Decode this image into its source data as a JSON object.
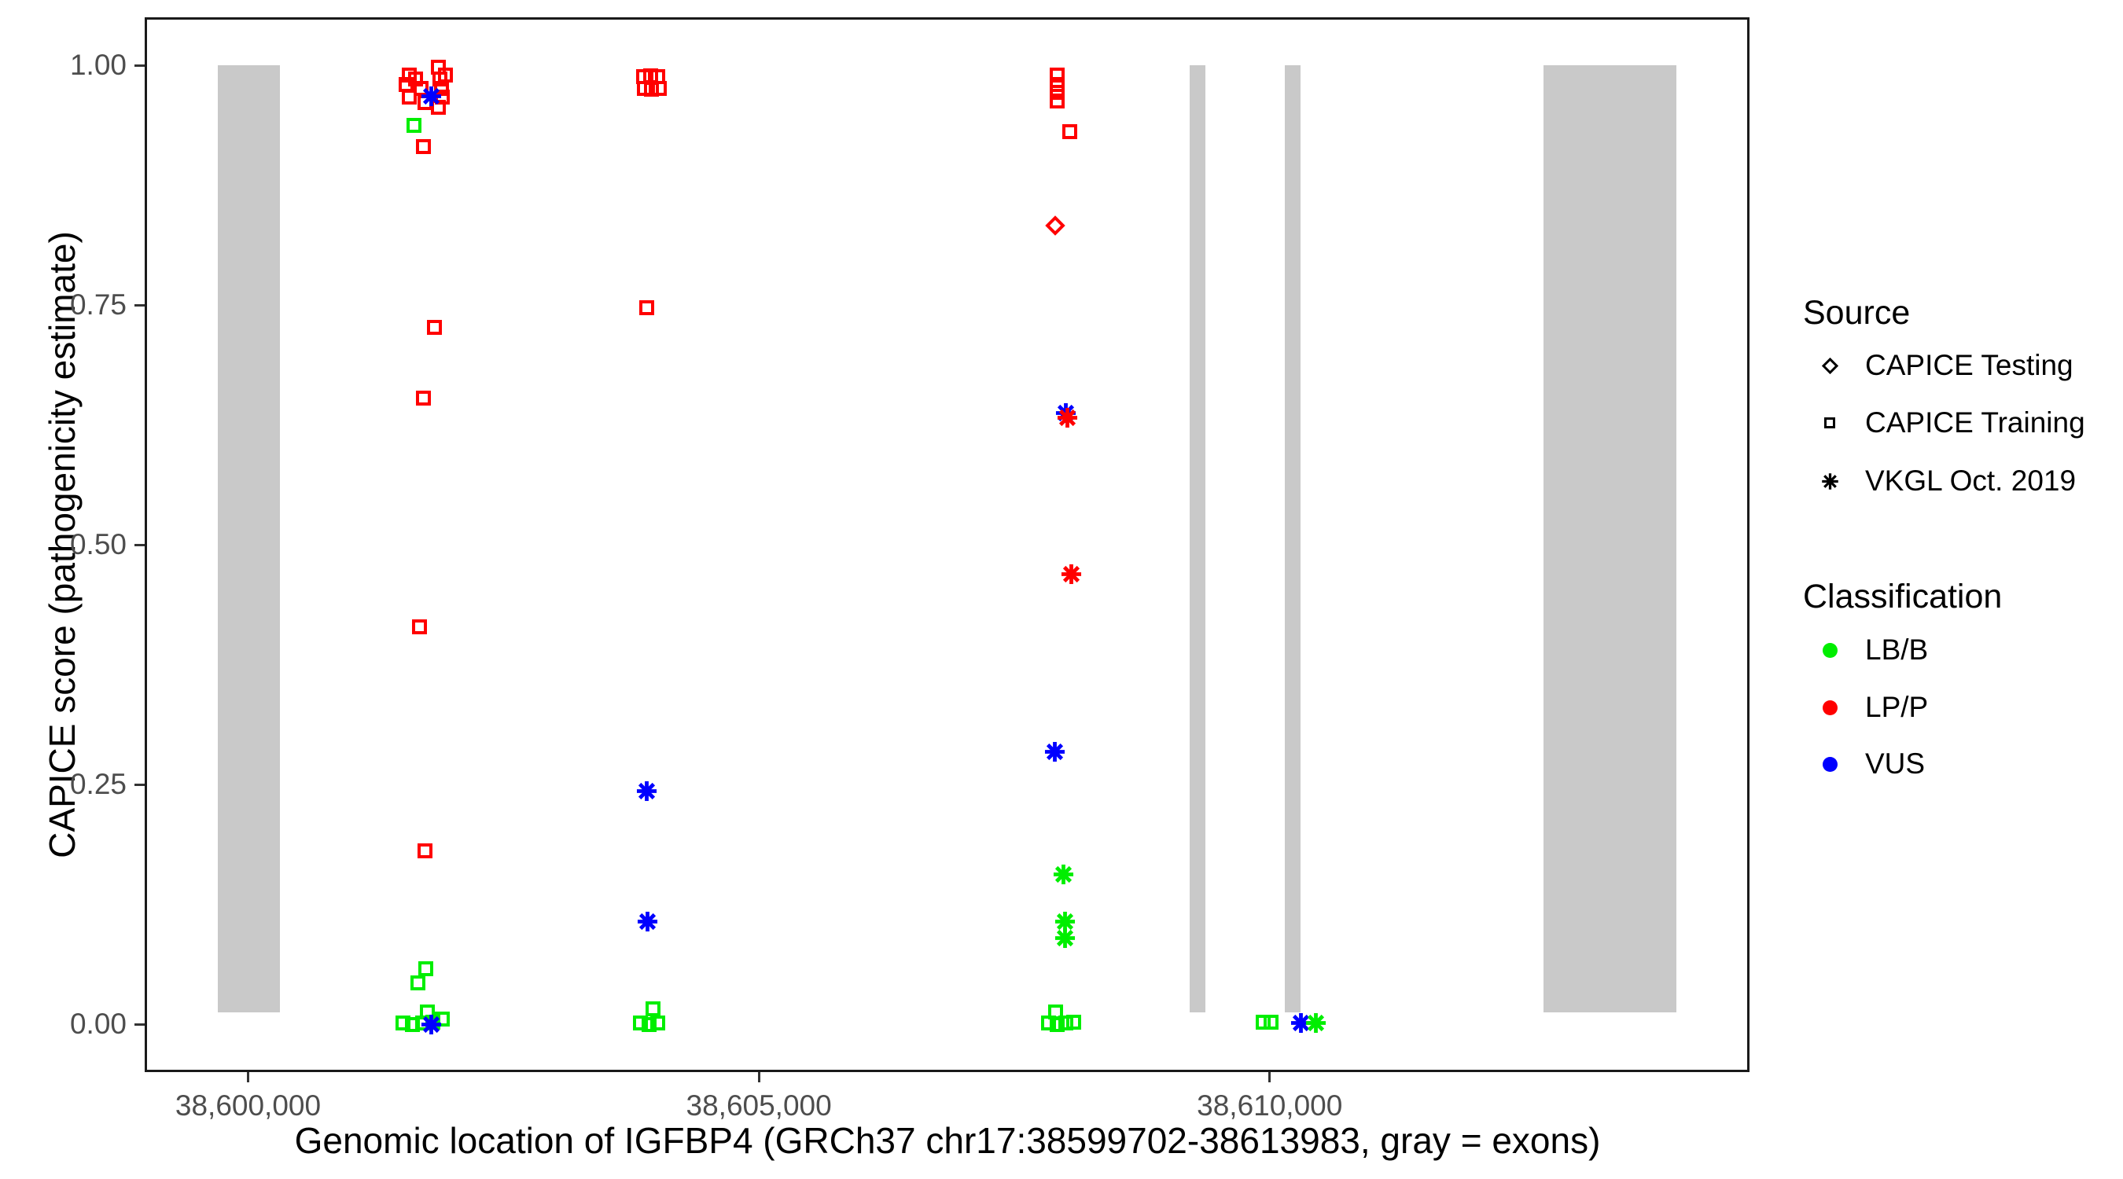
{
  "chart_data": {
    "type": "scatter",
    "xlabel": "Genomic location of IGFBP4 (GRCh37 chr17:38599702-38613983, gray = exons)",
    "ylabel": "CAPICE score (pathogenicity estimate)",
    "xlim": [
      38598988,
      38614697
    ],
    "ylim": [
      -0.05,
      1.05
    ],
    "grid": false,
    "x_ticks": [
      {
        "value": 38600000,
        "label": "38,600,000"
      },
      {
        "value": 38605000,
        "label": "38,605,000"
      },
      {
        "value": 38610000,
        "label": "38,610,000"
      }
    ],
    "y_ticks": [
      {
        "value": 0.0,
        "label": "0.00"
      },
      {
        "value": 0.25,
        "label": "0.25"
      },
      {
        "value": 0.5,
        "label": "0.50"
      },
      {
        "value": 0.75,
        "label": "0.75"
      },
      {
        "value": 1.0,
        "label": "1.00"
      }
    ],
    "exon_band": {
      "color": "#c9c9c9",
      "y_from": 0.0125,
      "y_to": 1.0
    },
    "exons": [
      [
        38599702,
        38600315
      ],
      [
        38609217,
        38609371
      ],
      [
        38610148,
        38610302
      ],
      [
        38612680,
        38613983
      ]
    ],
    "class_colors": {
      "LB/B": "#00ee00",
      "LP/P": "#ff0000",
      "VUS": "#0000ff"
    },
    "series": [
      {
        "name": "CAPICE Training",
        "marker": "square",
        "points": [
          {
            "x": 38601580,
            "y": 0.99,
            "cls": "LP/P"
          },
          {
            "x": 38601550,
            "y": 0.98,
            "cls": "LP/P"
          },
          {
            "x": 38601640,
            "y": 0.986,
            "cls": "LP/P"
          },
          {
            "x": 38601690,
            "y": 0.976,
            "cls": "LP/P"
          },
          {
            "x": 38601580,
            "y": 0.967,
            "cls": "LP/P"
          },
          {
            "x": 38601735,
            "y": 0.961,
            "cls": "LP/P"
          },
          {
            "x": 38601860,
            "y": 0.998,
            "cls": "LP/P"
          },
          {
            "x": 38601875,
            "y": 0.986,
            "cls": "LP/P"
          },
          {
            "x": 38601890,
            "y": 0.976,
            "cls": "LP/P"
          },
          {
            "x": 38601905,
            "y": 0.967,
            "cls": "LP/P"
          },
          {
            "x": 38601935,
            "y": 0.99,
            "cls": "LP/P"
          },
          {
            "x": 38601860,
            "y": 0.956,
            "cls": "LP/P"
          },
          {
            "x": 38601627,
            "y": 0.937,
            "cls": "LB/B"
          },
          {
            "x": 38601720,
            "y": 0.915,
            "cls": "LP/P"
          },
          {
            "x": 38601828,
            "y": 0.727,
            "cls": "LP/P"
          },
          {
            "x": 38601720,
            "y": 0.653,
            "cls": "LP/P"
          },
          {
            "x": 38601680,
            "y": 0.414,
            "cls": "LP/P"
          },
          {
            "x": 38601735,
            "y": 0.181,
            "cls": "LP/P"
          },
          {
            "x": 38601742,
            "y": 0.058,
            "cls": "LB/B"
          },
          {
            "x": 38601665,
            "y": 0.043,
            "cls": "LB/B"
          },
          {
            "x": 38601757,
            "y": 0.013,
            "cls": "LB/B"
          },
          {
            "x": 38601518,
            "y": 0.001,
            "cls": "LB/B"
          },
          {
            "x": 38601611,
            "y": 0.0,
            "cls": "LB/B"
          },
          {
            "x": 38601711,
            "y": 0.001,
            "cls": "LB/B"
          },
          {
            "x": 38601812,
            "y": 0.002,
            "cls": "LB/B"
          },
          {
            "x": 38601904,
            "y": 0.005,
            "cls": "LB/B"
          },
          {
            "x": 38603872,
            "y": 0.988,
            "cls": "LP/P"
          },
          {
            "x": 38603941,
            "y": 0.989,
            "cls": "LP/P"
          },
          {
            "x": 38604011,
            "y": 0.988,
            "cls": "LP/P"
          },
          {
            "x": 38603880,
            "y": 0.976,
            "cls": "LP/P"
          },
          {
            "x": 38603949,
            "y": 0.975,
            "cls": "LP/P"
          },
          {
            "x": 38604026,
            "y": 0.976,
            "cls": "LP/P"
          },
          {
            "x": 38603903,
            "y": 0.747,
            "cls": "LP/P"
          },
          {
            "x": 38603964,
            "y": 0.016,
            "cls": "LB/B"
          },
          {
            "x": 38603841,
            "y": 0.001,
            "cls": "LB/B"
          },
          {
            "x": 38603926,
            "y": 0.0,
            "cls": "LB/B"
          },
          {
            "x": 38604011,
            "y": 0.001,
            "cls": "LB/B"
          },
          {
            "x": 38607923,
            "y": 0.99,
            "cls": "LP/P"
          },
          {
            "x": 38607923,
            "y": 0.98,
            "cls": "LP/P"
          },
          {
            "x": 38607923,
            "y": 0.972,
            "cls": "LP/P"
          },
          {
            "x": 38607923,
            "y": 0.963,
            "cls": "LP/P"
          },
          {
            "x": 38608046,
            "y": 0.931,
            "cls": "LP/P"
          },
          {
            "x": 38607907,
            "y": 0.013,
            "cls": "LB/B"
          },
          {
            "x": 38607834,
            "y": 0.001,
            "cls": "LB/B"
          },
          {
            "x": 38607919,
            "y": 0.0,
            "cls": "LB/B"
          },
          {
            "x": 38608003,
            "y": 0.001,
            "cls": "LB/B"
          },
          {
            "x": 38608080,
            "y": 0.002,
            "cls": "LB/B"
          },
          {
            "x": 38609936,
            "y": 0.002,
            "cls": "LB/B"
          },
          {
            "x": 38610013,
            "y": 0.002,
            "cls": "LB/B"
          }
        ]
      },
      {
        "name": "VKGL Oct. 2019",
        "marker": "asterisk",
        "points": [
          {
            "x": 38601790,
            "y": 0.968,
            "cls": "VUS"
          },
          {
            "x": 38601797,
            "y": 0.0,
            "cls": "VUS"
          },
          {
            "x": 38603903,
            "y": 0.243,
            "cls": "VUS"
          },
          {
            "x": 38603910,
            "y": 0.107,
            "cls": "VUS"
          },
          {
            "x": 38608007,
            "y": 0.637,
            "cls": "VUS"
          },
          {
            "x": 38608023,
            "y": 0.632,
            "cls": "LP/P"
          },
          {
            "x": 38608062,
            "y": 0.469,
            "cls": "LP/P"
          },
          {
            "x": 38607900,
            "y": 0.284,
            "cls": "VUS"
          },
          {
            "x": 38607985,
            "y": 0.156,
            "cls": "LB/B"
          },
          {
            "x": 38608000,
            "y": 0.107,
            "cls": "LB/B"
          },
          {
            "x": 38608000,
            "y": 0.09,
            "cls": "LB/B"
          },
          {
            "x": 38610307,
            "y": 0.001,
            "cls": "VUS"
          },
          {
            "x": 38610453,
            "y": 0.001,
            "cls": "LB/B"
          }
        ]
      },
      {
        "name": "CAPICE Testing",
        "marker": "diamond",
        "points": [
          {
            "x": 38607900,
            "y": 0.833,
            "cls": "LP/P"
          }
        ]
      }
    ]
  },
  "legend": {
    "source": {
      "title": "Source",
      "items": [
        {
          "label": "CAPICE Testing",
          "marker": "diamond"
        },
        {
          "label": "CAPICE Training",
          "marker": "square"
        },
        {
          "label": "VKGL Oct. 2019",
          "marker": "asterisk"
        }
      ]
    },
    "classification": {
      "title": "Classification",
      "items": [
        {
          "label": "LB/B",
          "color": "#00ee00"
        },
        {
          "label": "LP/P",
          "color": "#ff0000"
        },
        {
          "label": "VUS",
          "color": "#0000ff"
        }
      ]
    }
  }
}
